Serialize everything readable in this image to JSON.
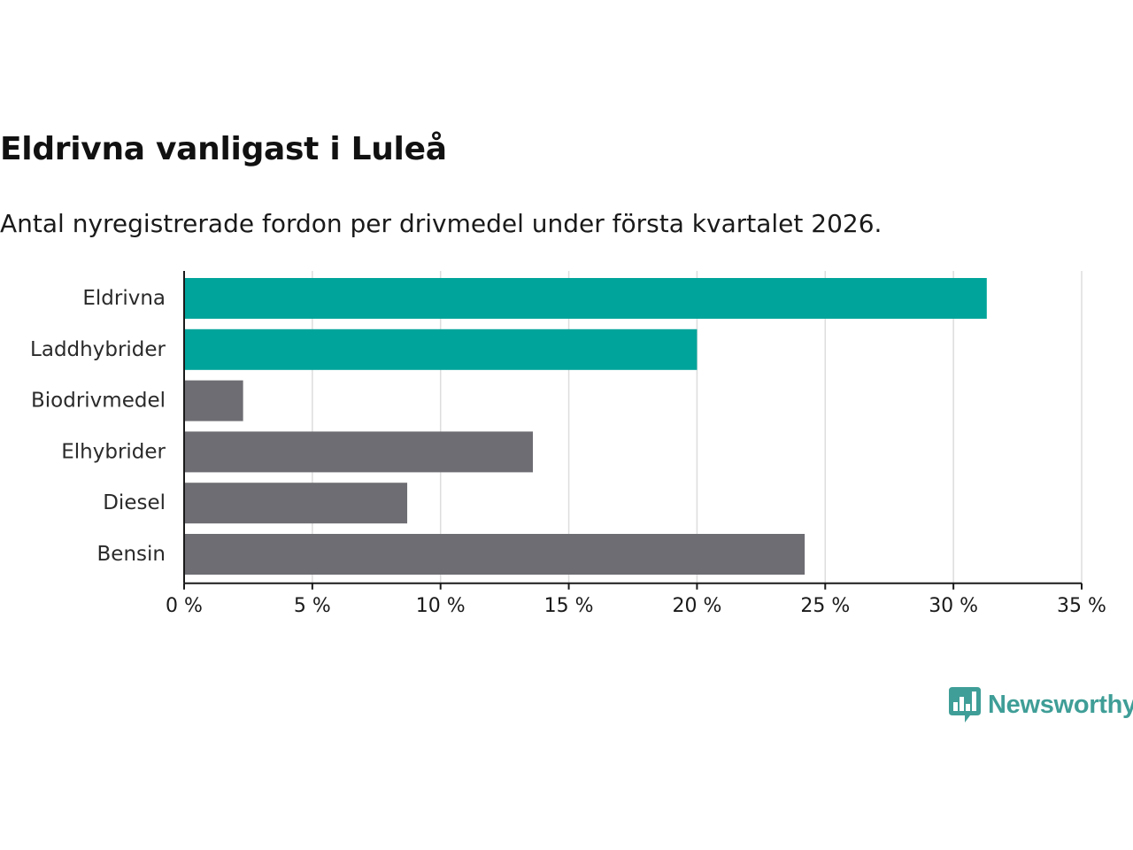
{
  "header": {
    "title": "Eldrivna vanligast i Luleå",
    "subtitle": "Antal nyregistrerade fordon per drivmedel under första kvartalet 2026."
  },
  "chart_data": {
    "type": "bar",
    "orientation": "horizontal",
    "title": "Eldrivna vanligast i Luleå",
    "subtitle": "Antal nyregistrerade fordon per drivmedel under första kvartalet 2026.",
    "categories": [
      "Eldrivna",
      "Laddhybrider",
      "Biodrivmedel",
      "Elhybrider",
      "Diesel",
      "Bensin"
    ],
    "values": [
      31.3,
      20.0,
      2.3,
      13.6,
      8.7,
      24.2
    ],
    "unit": "%",
    "highlighted": [
      true,
      true,
      false,
      false,
      false,
      false
    ],
    "colors": {
      "highlight": "#00a49a",
      "default": "#6d6d73",
      "grid": "#dddddd",
      "axis": "#1a1a1a"
    },
    "xlim": [
      0,
      35
    ],
    "xticks": [
      0,
      5,
      10,
      15,
      20,
      25,
      30,
      35
    ],
    "xtick_labels": [
      "0 %",
      "5 %",
      "10 %",
      "15 %",
      "20 %",
      "25 %",
      "30 %",
      "35 %"
    ],
    "xlabel": "",
    "ylabel": "",
    "grid": true
  },
  "branding": {
    "logo_text": "Newsworthy",
    "logo_icon": "bar-chart-speech-bubble-icon",
    "color": "#3f9e97"
  }
}
